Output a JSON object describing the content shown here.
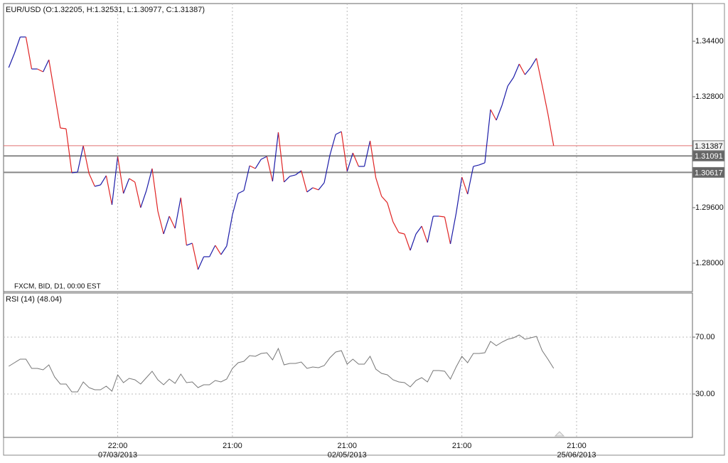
{
  "chart_data": [
    {
      "type": "line",
      "title": "EUR/USD (O:1.32205, H:1.32531, L:1.30977, C:1.31387)",
      "subtitle": "FXCM, BID, D1, 00:00 EST",
      "up_color": "#1c1ca8",
      "down_color": "#e02424",
      "values": [
        1.33641,
        1.34051,
        1.34523,
        1.34523,
        1.336,
        1.336,
        1.33518,
        1.33867,
        1.32882,
        1.31897,
        1.31877,
        1.30605,
        1.30626,
        1.31385,
        1.30585,
        1.30215,
        1.30256,
        1.30523,
        1.29682,
        1.31077,
        1.3001,
        1.30441,
        1.30338,
        1.296,
        1.30092,
        1.30728,
        1.29497,
        1.28841,
        1.29354,
        1.29005,
        1.29887,
        1.28513,
        1.28574,
        1.27815,
        1.28185,
        1.28185,
        1.28513,
        1.28246,
        1.28492,
        1.29395,
        1.3001,
        1.30092,
        1.3081,
        1.30728,
        1.30995,
        1.31077,
        1.30359,
        1.31774,
        1.30338,
        1.30503,
        1.30544,
        1.30667,
        1.30051,
        1.30174,
        1.30113,
        1.30318,
        1.31118,
        1.31713,
        1.31795,
        1.30646,
        1.31179,
        1.3079,
        1.3079,
        1.31528,
        1.30462,
        1.29928,
        1.29744,
        1.2919,
        1.28882,
        1.28841,
        1.28369,
        1.28841,
        1.29067,
        1.28595,
        1.29354,
        1.29354,
        1.29333,
        1.28554,
        1.29436,
        1.30482,
        1.2999,
        1.3079,
        1.30831,
        1.30892,
        1.32431,
        1.32123,
        1.32554,
        1.33108,
        1.33354,
        1.33744,
        1.33436,
        1.33641,
        1.33908,
        1.33128,
        1.32308,
        1.31387
      ],
      "xlim": [
        -0.9,
        119.2
      ],
      "ylim": [
        1.27179,
        1.35487
      ],
      "yticks": [
        {
          "value": 1.344,
          "label": "1.34400"
        },
        {
          "value": 1.328,
          "label": "1.32800"
        },
        {
          "value": 1.296,
          "label": "1.29600"
        },
        {
          "value": 1.28,
          "label": "1.28000"
        }
      ],
      "levels": [
        {
          "value": 1.31387,
          "label": "1.31387",
          "color": "#e07070"
        },
        {
          "value": 1.31091,
          "label": "1.31091",
          "color": "#888888"
        },
        {
          "value": 1.30617,
          "label": "1.30617",
          "color": "#888888"
        }
      ]
    },
    {
      "type": "line",
      "title": "RSI (14)  (48.04)",
      "color": "#777777",
      "values": [
        49.5,
        52,
        54.5,
        54.5,
        48,
        48,
        47,
        50.5,
        42,
        37,
        37,
        31.5,
        31.5,
        38.5,
        34.5,
        33,
        33,
        35.5,
        32,
        43.5,
        38,
        41,
        40,
        37,
        41.5,
        46,
        40,
        36.5,
        40.5,
        37.5,
        44,
        38,
        38.5,
        34.5,
        36.5,
        36.5,
        39.5,
        38.5,
        40.5,
        48,
        52,
        53,
        57,
        56.5,
        58.5,
        59,
        54,
        62,
        50.5,
        51.5,
        51.5,
        52.5,
        48,
        49,
        48.5,
        50,
        55.5,
        59.5,
        60.5,
        51,
        54.5,
        51,
        51,
        56.5,
        47.5,
        44.5,
        43.5,
        40,
        38.5,
        38,
        35,
        39.5,
        41.5,
        38.5,
        46.5,
        46.5,
        46,
        40.5,
        49,
        56.5,
        52,
        58.5,
        58.5,
        59,
        67,
        64,
        66.5,
        68.5,
        69.5,
        71.5,
        68.5,
        69.5,
        70.5,
        60.5,
        54.5,
        48.04
      ],
      "xlim": [
        -0.9,
        119.2
      ],
      "ylim": [
        -0.5,
        101
      ],
      "yticks": [
        {
          "value": 70,
          "label": "70.00"
        },
        {
          "value": 30,
          "label": "30.00"
        }
      ],
      "xticks": [
        {
          "value": 19,
          "label": "22:00"
        },
        {
          "value": 39,
          "label": "21:00"
        },
        {
          "value": 59,
          "label": "21:00"
        },
        {
          "value": 79,
          "label": "21:00"
        },
        {
          "value": 99,
          "label": "21:00"
        }
      ],
      "xtick_dates": [
        {
          "value": 19,
          "label": "07/03/2013"
        },
        {
          "value": 59,
          "label": "02/05/2013"
        },
        {
          "value": 99,
          "label": "25/06/2013"
        }
      ]
    }
  ]
}
